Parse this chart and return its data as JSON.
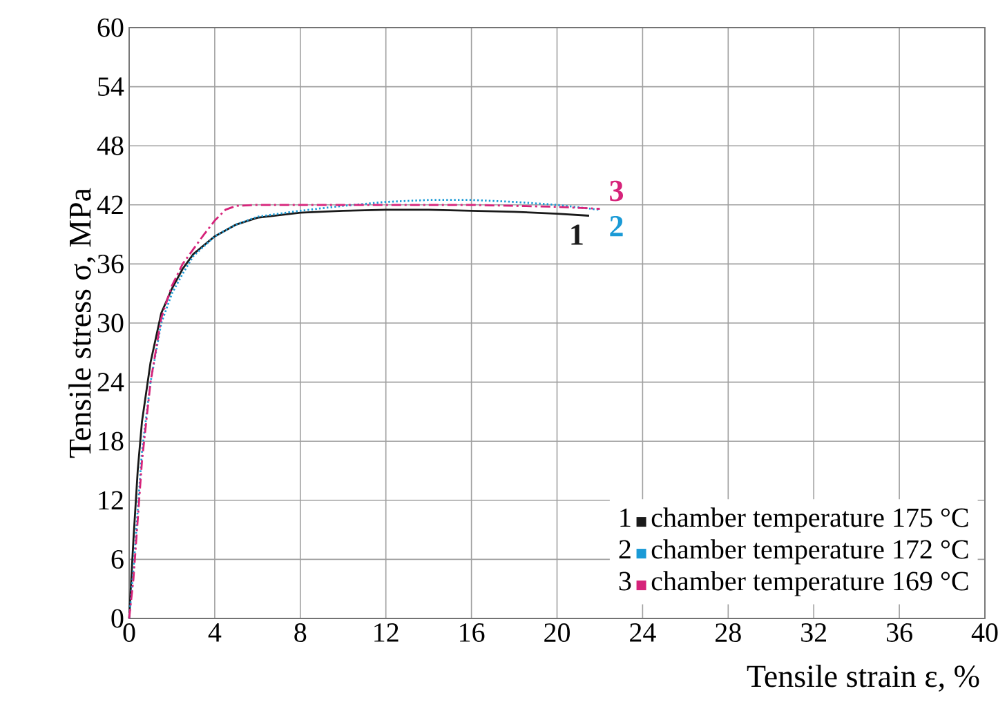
{
  "chart_data": {
    "type": "line",
    "xlabel": "Tensile strain ε, %",
    "ylabel": "Tensile stress σ, MPa",
    "xlim": [
      0,
      40
    ],
    "ylim": [
      0,
      60
    ],
    "xticks": [
      0,
      4,
      8,
      12,
      16,
      20,
      24,
      28,
      32,
      36,
      40
    ],
    "yticks": [
      0,
      6,
      12,
      18,
      24,
      30,
      36,
      42,
      48,
      54,
      60
    ],
    "grid": true,
    "legend": "bottom right",
    "marker": "none",
    "x": [
      0,
      0.2,
      0.4,
      0.6,
      1,
      1.5,
      2,
      2.5,
      3,
      4,
      5,
      6,
      8,
      10,
      12,
      14,
      16,
      18,
      20,
      21.5
    ],
    "series": [
      {
        "name": "chamber temperature 175 °C",
        "color": "#1a1a1a",
        "line_style": "solid",
        "values": [
          0,
          8,
          15,
          20,
          26,
          31,
          33.5,
          35.5,
          37,
          38.8,
          40,
          40.7,
          41.2,
          41.4,
          41.5,
          41.5,
          41.4,
          41.3,
          41.1,
          40.9
        ]
      },
      {
        "name": "chamber temperature 172 °C",
        "color": "#1a9ad6",
        "line_style": "dotted",
        "x": [
          0,
          0.2,
          0.4,
          0.6,
          1,
          1.5,
          2,
          2.5,
          3,
          4,
          5,
          6,
          8,
          10,
          12,
          14,
          16,
          18,
          20,
          22
        ],
        "values": [
          0,
          5,
          11,
          17,
          24,
          30,
          33,
          35,
          36.8,
          38.8,
          40,
          40.8,
          41.4,
          41.9,
          42.3,
          42.5,
          42.5,
          42.3,
          42,
          41.5
        ]
      },
      {
        "name": "chamber temperature 169 °C",
        "color": "#d6237a",
        "line_style": "dashed",
        "x": [
          0,
          0.2,
          0.4,
          0.6,
          1,
          1.5,
          2,
          2.5,
          3,
          3.5,
          4,
          4.5,
          5,
          6,
          8,
          10,
          12,
          14,
          16,
          18,
          20,
          22
        ],
        "values": [
          0,
          4,
          10,
          16,
          24,
          30.5,
          33.8,
          36,
          37.5,
          39,
          40.4,
          41.5,
          41.9,
          42,
          42,
          42,
          42,
          42,
          42,
          41.9,
          41.8,
          41.6
        ]
      }
    ],
    "annotations": [
      "1",
      "2",
      "3"
    ]
  }
}
